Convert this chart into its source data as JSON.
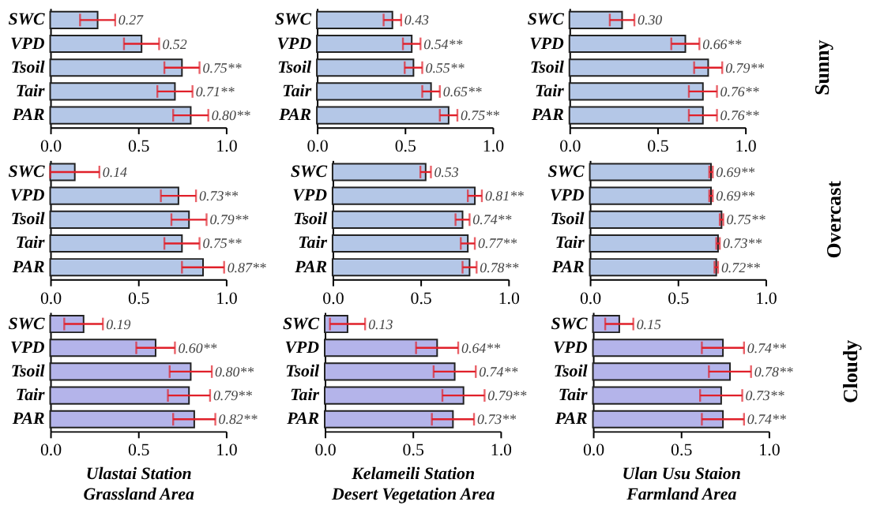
{
  "chart_data": [
    {
      "type": "bar",
      "orientation": "horizontal",
      "categories": [
        "SWC",
        "VPD",
        "Tsoil",
        "Tair",
        "PAR"
      ],
      "values": [
        0.27,
        0.52,
        0.75,
        0.71,
        0.8
      ],
      "errors": [
        0.1,
        0.1,
        0.1,
        0.1,
        0.1
      ],
      "value_labels": [
        "0.27",
        "0.52",
        "0.75**",
        "0.71**",
        "0.80**"
      ],
      "color": "#b4c7e7",
      "xlim": [
        0,
        1
      ],
      "xticks": [
        {
          "value": 0,
          "label": "0.0"
        },
        {
          "value": 0.5,
          "label": "0.5"
        },
        {
          "value": 1,
          "label": "1.0"
        }
      ],
      "grid": false
    },
    {
      "type": "bar",
      "orientation": "horizontal",
      "categories": [
        "SWC",
        "VPD",
        "Tsoil",
        "Tair",
        "PAR"
      ],
      "values": [
        0.43,
        0.54,
        0.55,
        0.65,
        0.75
      ],
      "errors": [
        0.05,
        0.05,
        0.05,
        0.05,
        0.05
      ],
      "value_labels": [
        "0.43",
        "0.54**",
        "0.55**",
        "0.65**",
        "0.75**"
      ],
      "color": "#b4c7e7",
      "xlim": [
        0,
        1
      ],
      "xticks": [
        {
          "value": 0,
          "label": "0.0"
        },
        {
          "value": 0.5,
          "label": "0.5"
        },
        {
          "value": 1,
          "label": "1.0"
        }
      ],
      "grid": false
    },
    {
      "type": "bar",
      "orientation": "horizontal",
      "categories": [
        "SWC",
        "VPD",
        "Tsoil",
        "Tair",
        "PAR"
      ],
      "values": [
        0.3,
        0.66,
        0.79,
        0.76,
        0.76
      ],
      "errors": [
        0.07,
        0.08,
        0.08,
        0.08,
        0.08
      ],
      "value_labels": [
        "0.30",
        "0.66**",
        "0.79**",
        "0.76**",
        "0.76**"
      ],
      "color": "#b4c7e7",
      "xlim": [
        0,
        1
      ],
      "xticks": [
        {
          "value": 0,
          "label": "0.0"
        },
        {
          "value": 0.5,
          "label": "0.5"
        },
        {
          "value": 1,
          "label": "1.0"
        }
      ],
      "y2label": "Sunny",
      "grid": false
    },
    {
      "type": "bar",
      "orientation": "horizontal",
      "categories": [
        "SWC",
        "VPD",
        "Tsoil",
        "Tair",
        "PAR"
      ],
      "values": [
        0.14,
        0.73,
        0.79,
        0.75,
        0.87
      ],
      "errors": [
        0.14,
        0.1,
        0.1,
        0.1,
        0.12
      ],
      "value_labels": [
        "0.14",
        "0.73**",
        "0.79**",
        "0.75**",
        "0.87**"
      ],
      "color": "#b4c7e7",
      "xlim": [
        0,
        1
      ],
      "xticks": [
        {
          "value": 0,
          "label": "0.0"
        },
        {
          "value": 0.5,
          "label": "0.5"
        },
        {
          "value": 1,
          "label": "1.0"
        }
      ],
      "grid": false
    },
    {
      "type": "bar",
      "orientation": "horizontal",
      "categories": [
        "SWC",
        "VPD",
        "Tsoil",
        "Tair",
        "PAR"
      ],
      "values": [
        0.53,
        0.81,
        0.74,
        0.77,
        0.78
      ],
      "errors": [
        0.03,
        0.04,
        0.04,
        0.04,
        0.04
      ],
      "value_labels": [
        "0.53",
        "0.81**",
        "0.74**",
        "0.77**",
        "0.78**"
      ],
      "color": "#b4c7e7",
      "xlim": [
        0,
        1
      ],
      "xticks": [
        {
          "value": 0,
          "label": "0.0"
        },
        {
          "value": 0.5,
          "label": "0.5"
        },
        {
          "value": 1,
          "label": "1.0"
        }
      ],
      "grid": false
    },
    {
      "type": "bar",
      "orientation": "horizontal",
      "categories": [
        "SWC",
        "VPD",
        "Tsoil",
        "Tair",
        "PAR"
      ],
      "values": [
        0.69,
        0.69,
        0.75,
        0.73,
        0.72
      ],
      "errors": [
        0.01,
        0.01,
        0.01,
        0.01,
        0.01
      ],
      "value_labels": [
        "0.69**",
        "0.69**",
        "0.75**",
        "0.73**",
        "0.72**"
      ],
      "color": "#b4c7e7",
      "xlim": [
        0,
        1
      ],
      "xticks": [
        {
          "value": 0,
          "label": "0.0"
        },
        {
          "value": 0.5,
          "label": "0.5"
        },
        {
          "value": 1,
          "label": "1.0"
        }
      ],
      "y2label": "Overcast",
      "grid": false
    },
    {
      "type": "bar",
      "orientation": "horizontal",
      "categories": [
        "SWC",
        "VPD",
        "Tsoil",
        "Tair",
        "PAR"
      ],
      "values": [
        0.19,
        0.6,
        0.8,
        0.79,
        0.82
      ],
      "errors": [
        0.11,
        0.11,
        0.12,
        0.12,
        0.12
      ],
      "value_labels": [
        "0.19",
        "0.60**",
        "0.80**",
        "0.79**",
        "0.82**"
      ],
      "color": "#b4b4ea",
      "xlim": [
        0,
        1
      ],
      "xticks": [
        {
          "value": 0,
          "label": "0.0"
        },
        {
          "value": 0.5,
          "label": "0.5"
        },
        {
          "value": 1,
          "label": "1.0"
        }
      ],
      "xlabel": "Ulastai Station\nGrassland Area",
      "grid": false
    },
    {
      "type": "bar",
      "orientation": "horizontal",
      "categories": [
        "SWC",
        "VPD",
        "Tsoil",
        "Tair",
        "PAR"
      ],
      "values": [
        0.13,
        0.64,
        0.74,
        0.79,
        0.73
      ],
      "errors": [
        0.1,
        0.12,
        0.12,
        0.12,
        0.12
      ],
      "value_labels": [
        "0.13",
        "0.64**",
        "0.74**",
        "0.79**",
        "0.73**"
      ],
      "color": "#b4b4ea",
      "xlim": [
        0,
        1
      ],
      "xticks": [
        {
          "value": 0,
          "label": "0.0"
        },
        {
          "value": 0.5,
          "label": "0.5"
        },
        {
          "value": 1,
          "label": "1.0"
        }
      ],
      "xlabel": "Kelameili Station\nDesert Vegetation Area",
      "grid": false
    },
    {
      "type": "bar",
      "orientation": "horizontal",
      "categories": [
        "SWC",
        "VPD",
        "Tsoil",
        "Tair",
        "PAR"
      ],
      "values": [
        0.15,
        0.74,
        0.78,
        0.73,
        0.74
      ],
      "errors": [
        0.08,
        0.12,
        0.12,
        0.12,
        0.12
      ],
      "value_labels": [
        "0.15",
        "0.74**",
        "0.78**",
        "0.73**",
        "0.74**"
      ],
      "color": "#b4b4ea",
      "xlim": [
        0,
        1
      ],
      "xticks": [
        {
          "value": 0,
          "label": "0.0"
        },
        {
          "value": 0.5,
          "label": "0.5"
        },
        {
          "value": 1,
          "label": "1.0"
        }
      ],
      "xlabel": "Ulan Usu Staion\nFarmland Area",
      "y2label": "Cloudy",
      "grid": false
    }
  ]
}
